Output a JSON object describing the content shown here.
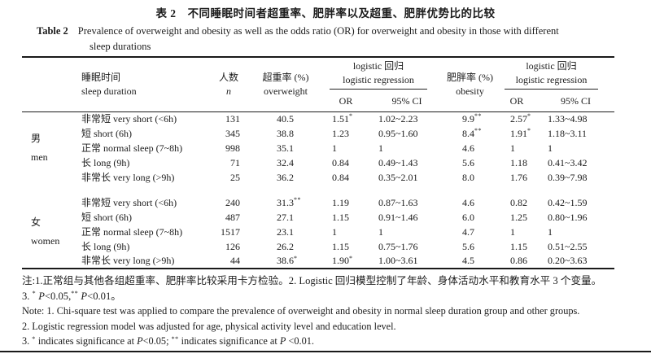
{
  "title": {
    "zh_label": "表 2",
    "zh_text": "不同睡眠时间者超重率、肥胖率以及超重、肥胖优势比的比较",
    "en_label": "Table 2",
    "en_line1": "Prevalence of overweight and obesity as well as the odds ratio (OR) for overweight and obesity in those with different",
    "en_line2": "sleep durations"
  },
  "table": {
    "header": {
      "sleep": {
        "zh": "睡眠时间",
        "en": "sleep duration"
      },
      "n": {
        "zh": "人数",
        "en": "n"
      },
      "overweight": {
        "zh": "超重率 (%)",
        "en": "overweight"
      },
      "logistic1": {
        "zh": "logistic 回归",
        "en": "logistic regression"
      },
      "obesity": {
        "zh": "肥胖率 (%)",
        "en": "obesity"
      },
      "logistic2": {
        "zh": "logistic 回归",
        "en": "logistic regression"
      },
      "or": "OR",
      "ci": "95% CI"
    },
    "groups": [
      {
        "label_zh": "男",
        "label_en": "men",
        "rows": [
          {
            "sleep": "非常短 very short (<6h)",
            "n": "131",
            "ow": "40.5",
            "or1": "1.51",
            "or1_sup": "*",
            "ci1": "1.02~2.23",
            "ob": "9.9",
            "ob_sup": "**",
            "or2": "2.57",
            "or2_sup": "*",
            "ci2": "1.33~4.98"
          },
          {
            "sleep": "短 short (6h)",
            "n": "345",
            "ow": "38.8",
            "or1": "1.23",
            "ci1": "0.95~1.60",
            "ob": "8.4",
            "ob_sup": "**",
            "or2": "1.91",
            "or2_sup": "*",
            "ci2": "1.18~3.11"
          },
          {
            "sleep": "正常 normal sleep (7~8h)",
            "n": "998",
            "ow": "35.1",
            "or1": "1",
            "ci1": "1",
            "ob": "4.6",
            "or2": "1",
            "ci2": "1"
          },
          {
            "sleep": "长 long (9h)",
            "n": "71",
            "ow": "32.4",
            "or1": "0.84",
            "ci1": "0.49~1.43",
            "ob": "5.6",
            "or2": "1.18",
            "ci2": "0.41~3.42"
          },
          {
            "sleep": "非常长 very long (>9h)",
            "n": "25",
            "ow": "36.2",
            "or1": "0.84",
            "ci1": "0.35~2.01",
            "ob": "8.0",
            "or2": "1.76",
            "ci2": "0.39~7.98"
          }
        ]
      },
      {
        "label_zh": "女",
        "label_en": "women",
        "rows": [
          {
            "sleep": "非常短 very short (<6h)",
            "n": "240",
            "ow": "31.3",
            "ow_sup": "**",
            "or1": "1.19",
            "ci1": "0.87~1.63",
            "ob": "4.6",
            "or2": "0.82",
            "ci2": "0.42~1.59"
          },
          {
            "sleep": "短 short (6h)",
            "n": "487",
            "ow": "27.1",
            "or1": "1.15",
            "ci1": "0.91~1.46",
            "ob": "6.0",
            "or2": "1.25",
            "ci2": "0.80~1.96"
          },
          {
            "sleep": "正常 normal sleep (7~8h)",
            "n": "1517",
            "ow": "23.1",
            "or1": "1",
            "ci1": "1",
            "ob": "4.7",
            "or2": "1",
            "ci2": "1"
          },
          {
            "sleep": "长 long (9h)",
            "n": "126",
            "ow": "26.2",
            "or1": "1.15",
            "ci1": "0.75~1.76",
            "ob": "5.6",
            "or2": "1.15",
            "ci2": "0.51~2.55"
          },
          {
            "sleep": "非常长 very long (>9h)",
            "n": "44",
            "ow": "38.6",
            "ow_sup": "*",
            "or1": "1.90",
            "or1_sup": "*",
            "ci1": "1.00~3.61",
            "ob": "4.5",
            "or2": "0.86",
            "ci2": "0.20~3.63"
          }
        ]
      }
    ]
  },
  "notes": {
    "zh": [
      [
        {
          "t": "注:1.正常组与其他各组超重率、肥胖率比较采用卡方检验。2. Logistic 回归模型控制了年龄、身体活动水平和教育水平 3 个变量。"
        }
      ],
      [
        {
          "t": "3. "
        },
        {
          "sup": "*"
        },
        {
          "t": " "
        },
        {
          "i": "P"
        },
        {
          "t": "<0.05,"
        },
        {
          "sup": "**"
        },
        {
          "t": " "
        },
        {
          "i": "P"
        },
        {
          "t": "<0.01。"
        }
      ]
    ],
    "en": [
      [
        {
          "t": "Note: 1. Chi-square test was applied to compare the prevalence of overweight and obesity in normal sleep duration group and other groups."
        }
      ],
      [
        {
          "t": "2. Logistic regression model was adjusted for age, physical activity level and education level."
        }
      ],
      [
        {
          "t": "3. "
        },
        {
          "sup": "*"
        },
        {
          "t": " indicates significance at "
        },
        {
          "i": "P"
        },
        {
          "t": "<0.05; "
        },
        {
          "sup": "**"
        },
        {
          "t": " indicates significance at "
        },
        {
          "i": "P"
        },
        {
          "t": " <0.01."
        }
      ]
    ]
  }
}
